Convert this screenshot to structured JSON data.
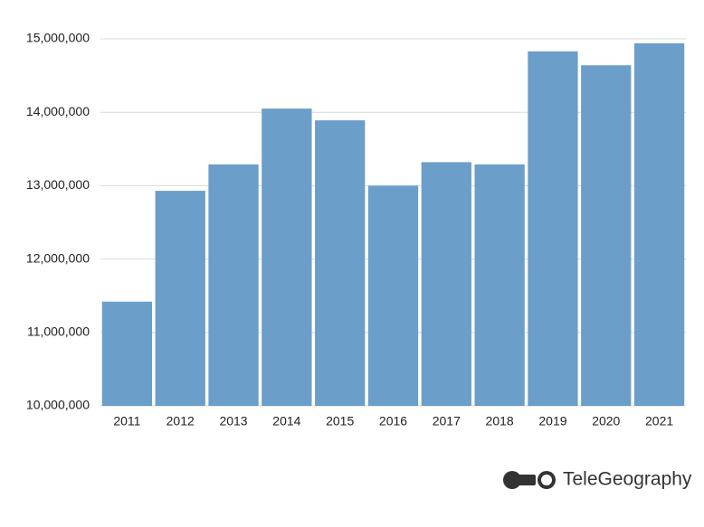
{
  "chart_data": {
    "type": "bar",
    "categories": [
      "2011",
      "2012",
      "2013",
      "2014",
      "2015",
      "2016",
      "2017",
      "2018",
      "2019",
      "2020",
      "2021"
    ],
    "values": [
      11420000,
      12930000,
      13290000,
      14050000,
      13890000,
      13000000,
      13320000,
      13290000,
      14830000,
      14640000,
      14940000
    ],
    "color": "#6b9ec9",
    "ylim": [
      10000000,
      15000000
    ],
    "yticks": [
      {
        "value": 10000000,
        "label": "10,000,000"
      },
      {
        "value": 11000000,
        "label": "11,000,000"
      },
      {
        "value": 12000000,
        "label": "12,000,000"
      },
      {
        "value": 13000000,
        "label": "13,000,000"
      },
      {
        "value": 14000000,
        "label": "14,000,000"
      },
      {
        "value": 15000000,
        "label": "15,000,000"
      }
    ],
    "grid": true,
    "brand": "TeleGeography"
  }
}
